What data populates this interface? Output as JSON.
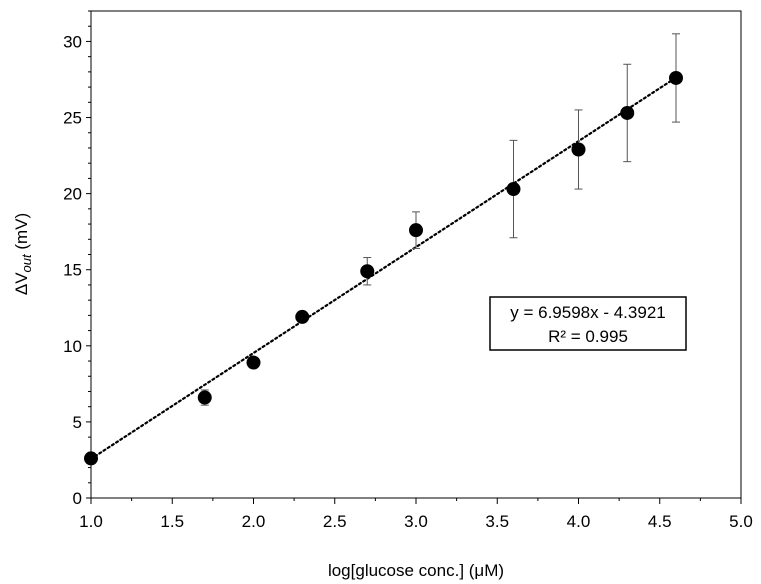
{
  "chart_data": {
    "type": "scatter",
    "title": "",
    "xlabel": "log[glucose conc.] (μM)",
    "ylabel": {
      "prefix": "ΔV",
      "subscript": "out",
      "suffix": " (mV)"
    },
    "xlim": [
      1.0,
      5.0
    ],
    "ylim": [
      0,
      32
    ],
    "x_ticks": [
      "1.0",
      "1.5",
      "2.0",
      "2.5",
      "3.0",
      "3.5",
      "4.0",
      "4.5",
      "5.0"
    ],
    "y_ticks": [
      "0",
      "5",
      "10",
      "15",
      "20",
      "25",
      "30"
    ],
    "grid": false,
    "legend": "none",
    "series": [
      {
        "x": [
          1.0,
          1.7,
          2.0,
          2.3,
          2.7,
          3.0,
          3.6,
          4.0,
          4.3,
          4.6
        ],
        "y": [
          2.6,
          6.6,
          8.9,
          11.9,
          14.9,
          17.6,
          20.3,
          22.9,
          25.3,
          27.6
        ],
        "error": [
          0.2,
          0.5,
          0.2,
          0.2,
          0.9,
          1.2,
          3.2,
          2.6,
          3.2,
          2.9
        ],
        "color": "#000000"
      }
    ],
    "trendline": {
      "slope": 6.9598,
      "intercept": -4.3921,
      "style": "dotted",
      "x_range": [
        1.0,
        4.6
      ]
    },
    "annotation": {
      "line1": "y = 6.9598x - 4.3921",
      "line2": "R² = 0.995",
      "position": "right"
    }
  }
}
